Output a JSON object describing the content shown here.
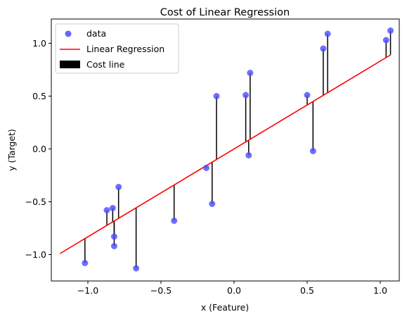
{
  "chart_data": {
    "type": "scatter",
    "title": "Cost of Linear Regression",
    "xlabel": "x (Feature)",
    "ylabel": "y (Target)",
    "xlim": [
      -1.25,
      1.13
    ],
    "ylim": [
      -1.25,
      1.23
    ],
    "xticks": [
      -1.0,
      -0.5,
      0.0,
      0.5,
      1.0
    ],
    "yticks": [
      -1.0,
      -0.5,
      0.0,
      0.5,
      1.0
    ],
    "xtick_labels": [
      "−1.0",
      "−0.5",
      "0.0",
      "0.5",
      "1.0"
    ],
    "ytick_labels": [
      "−1.0",
      "−0.5",
      "0.0",
      "0.5",
      "1.0"
    ],
    "grid": false,
    "legend": {
      "placement": "upper-left",
      "entries": [
        "data",
        "Linear Regression",
        "Cost line"
      ]
    },
    "colors": {
      "data": "#4b4bff",
      "regression": "#ff0000",
      "cost_line": "#000000"
    },
    "series": [
      {
        "name": "data",
        "type": "scatter",
        "x": [
          -1.02,
          -0.87,
          -0.83,
          -0.82,
          -0.82,
          -0.79,
          -0.67,
          -0.41,
          -0.19,
          -0.15,
          -0.12,
          0.08,
          0.1,
          0.11,
          0.5,
          0.54,
          0.61,
          0.64,
          1.04,
          1.07
        ],
        "y": [
          -1.08,
          -0.58,
          -0.56,
          -0.83,
          -0.92,
          -0.36,
          -1.13,
          -0.68,
          -0.18,
          -0.52,
          0.5,
          0.51,
          -0.06,
          0.72,
          0.51,
          -0.02,
          0.95,
          1.09,
          1.03,
          1.12
        ]
      },
      {
        "name": "Linear Regression",
        "type": "line",
        "x": [
          -1.19,
          1.07
        ],
        "y": [
          -0.99,
          0.89
        ]
      },
      {
        "name": "Cost line",
        "type": "segments",
        "note": "vertical segment from each data point to the regression line"
      }
    ],
    "regression": {
      "slope": 0.833,
      "intercept": 0.0
    }
  }
}
